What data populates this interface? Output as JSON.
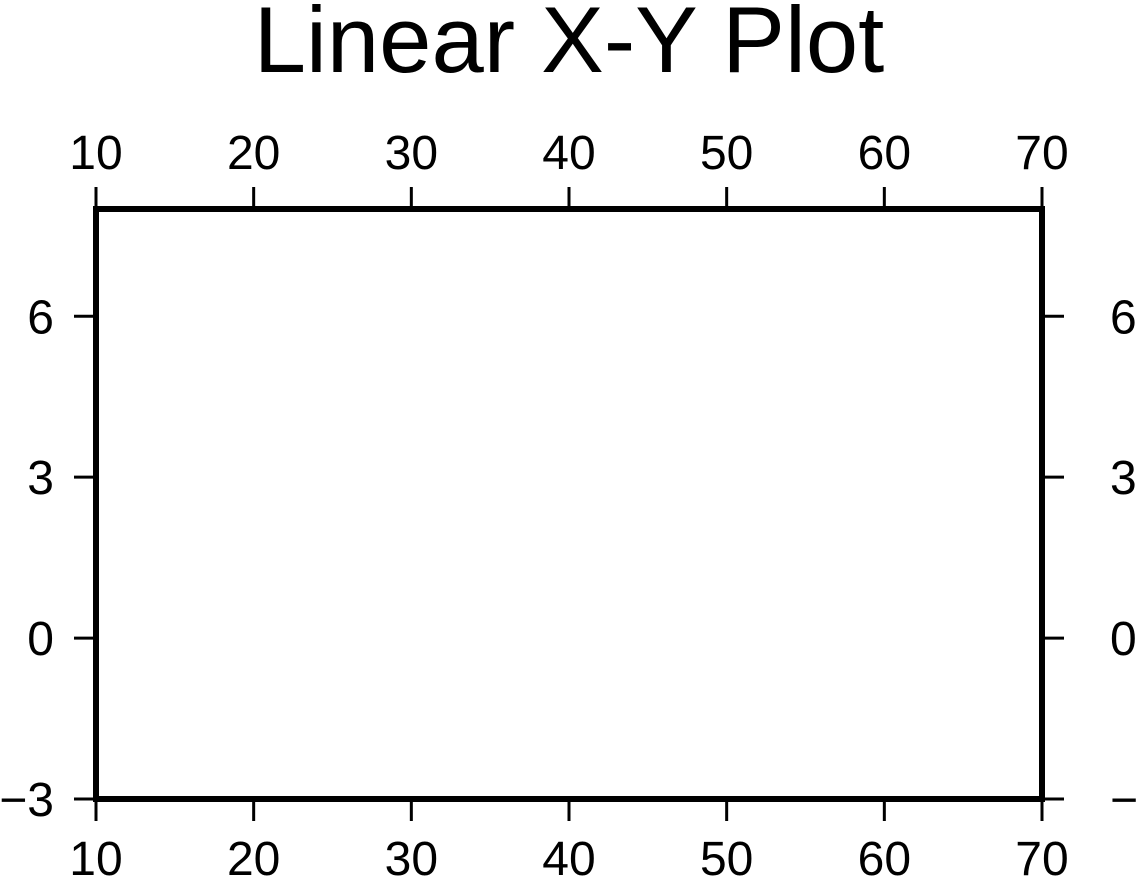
{
  "chart_data": {
    "type": "scatter",
    "title": "Linear X-Y Plot",
    "xlabel": "",
    "ylabel": "",
    "xlim": [
      10,
      70
    ],
    "ylim": [
      -3,
      8
    ],
    "x_ticks": [
      10,
      20,
      30,
      40,
      50,
      60,
      70
    ],
    "y_ticks": [
      -3,
      0,
      3,
      6
    ],
    "x_tick_labels": [
      "10",
      "20",
      "30",
      "40",
      "50",
      "60",
      "70"
    ],
    "y_tick_labels": [
      "−3",
      "0",
      "3",
      "6"
    ],
    "tick_labels_on": [
      "bottom",
      "top",
      "left",
      "right"
    ],
    "grid": false,
    "series": [],
    "colors": {
      "frame": "#000000",
      "background": "#ffffff",
      "text": "#000000"
    }
  }
}
